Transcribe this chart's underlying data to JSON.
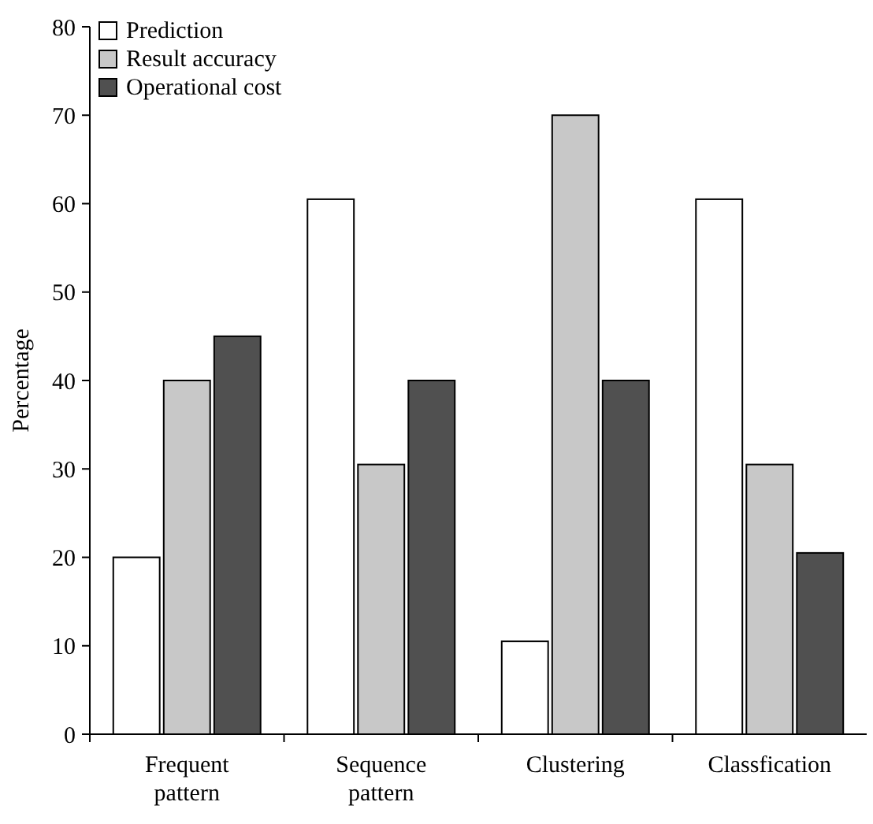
{
  "chart_data": {
    "type": "bar",
    "ylabel": "Percentage",
    "categories": [
      "Frequent pattern",
      "Sequence pattern",
      "Clustering",
      "Classfication"
    ],
    "series": [
      {
        "name": "Prediction",
        "color": "#ffffff",
        "values": [
          20,
          60.5,
          10.5,
          60.5
        ]
      },
      {
        "name": "Result accuracy",
        "color": "#c8c8c8",
        "values": [
          40,
          30.5,
          70,
          30.5
        ]
      },
      {
        "name": "Operational cost",
        "color": "#505050",
        "values": [
          45,
          40,
          40,
          20.5
        ]
      }
    ],
    "ylim": [
      0,
      80
    ],
    "yticks": [
      0,
      10,
      20,
      30,
      40,
      50,
      60,
      70,
      80
    ],
    "grid": false,
    "legend": "top left"
  }
}
